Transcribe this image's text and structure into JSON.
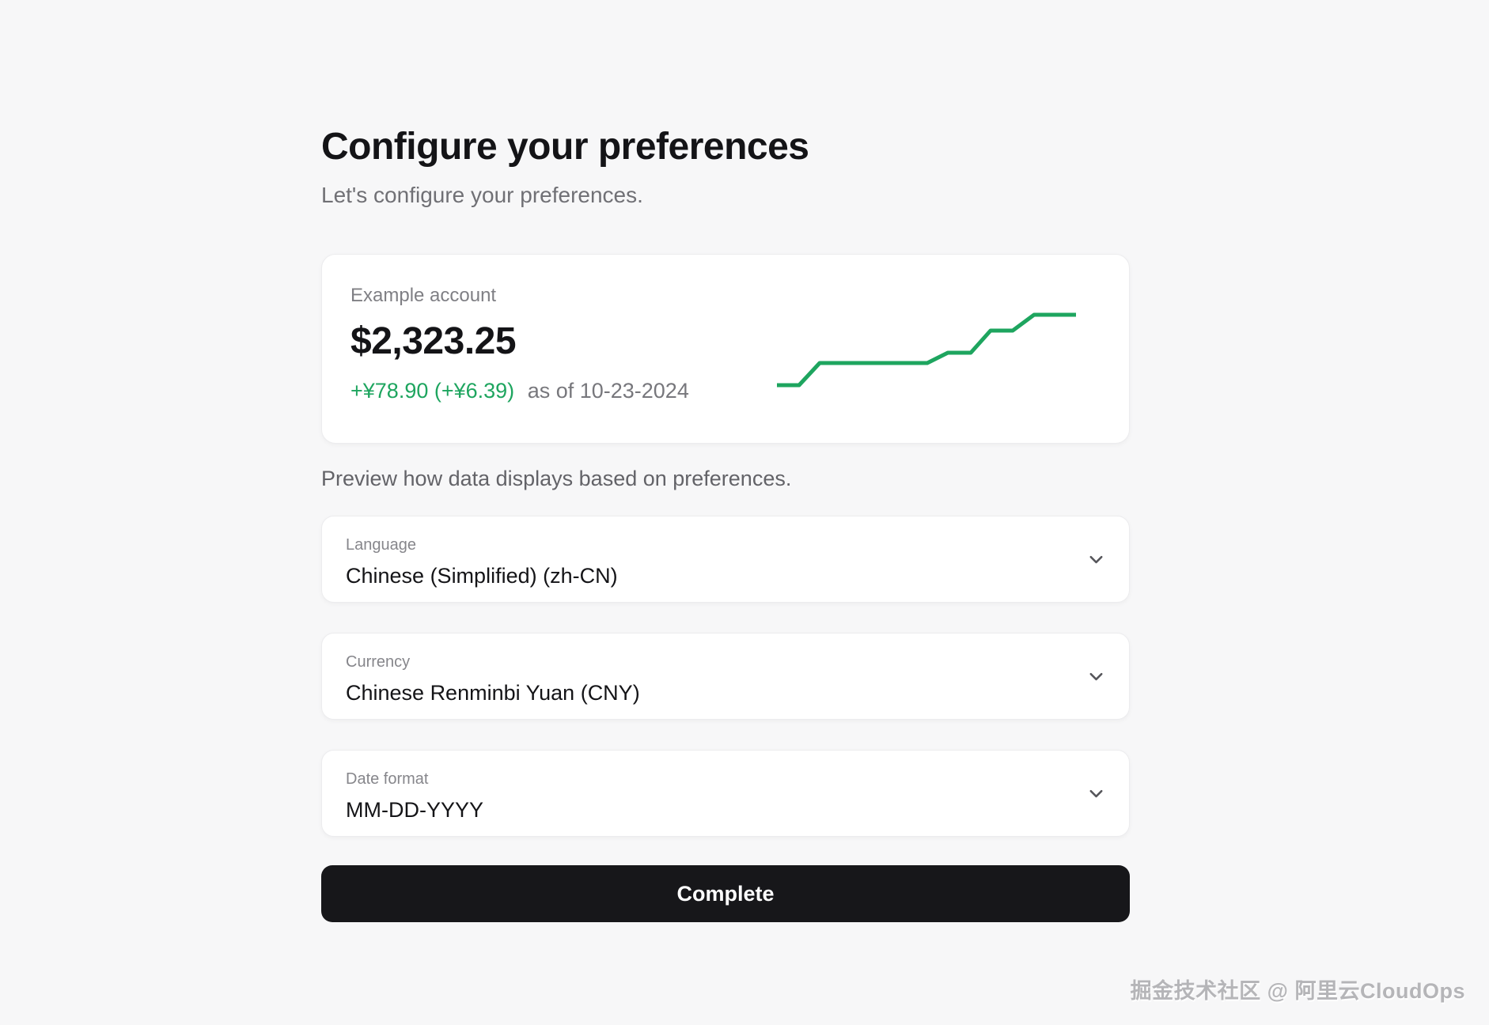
{
  "page": {
    "title": "Configure your preferences",
    "subtitle": "Let's configure your preferences.",
    "preview_caption": "Preview how data displays based on preferences."
  },
  "example_account": {
    "label": "Example account",
    "balance": "$2,323.25",
    "change": "+¥78.90 (+¥6.39)",
    "as_of": "as of 10-23-2024"
  },
  "chart_data": {
    "type": "line",
    "title": "Example account balance sparkline (no axes, no labels)",
    "series": [
      {
        "name": "balance",
        "points_svg": [
          [
            0,
            89
          ],
          [
            28,
            89
          ],
          [
            54,
            61
          ],
          [
            190,
            61
          ],
          [
            216,
            48
          ],
          [
            245,
            48
          ],
          [
            270,
            20
          ],
          [
            298,
            20
          ],
          [
            325,
            0
          ],
          [
            378,
            0
          ]
        ]
      }
    ],
    "xlabel": "",
    "ylabel": "",
    "axes_visible": false,
    "grid": false,
    "line_color": "#1ea55f",
    "shape_note": "Stepped rising line: short low plateau, step up to long plateau, small step, two larger steps, high plateau at right. y values are SVG coords (0 = top)."
  },
  "fields": [
    {
      "label": "Language",
      "value": "Chinese (Simplified) (zh-CN)"
    },
    {
      "label": "Currency",
      "value": "Chinese Renminbi Yuan (CNY)"
    },
    {
      "label": "Date format",
      "value": "MM-DD-YYYY"
    }
  ],
  "button": {
    "label": "Complete"
  },
  "watermark": "掘金技术社区 @ 阿里云CloudOps",
  "icons": {
    "field_dropdown": "chevron-down-icon"
  },
  "colors": {
    "accent_green": "#1ea55f",
    "button_bg": "#17171a",
    "page_bg": "#f7f7f8"
  }
}
